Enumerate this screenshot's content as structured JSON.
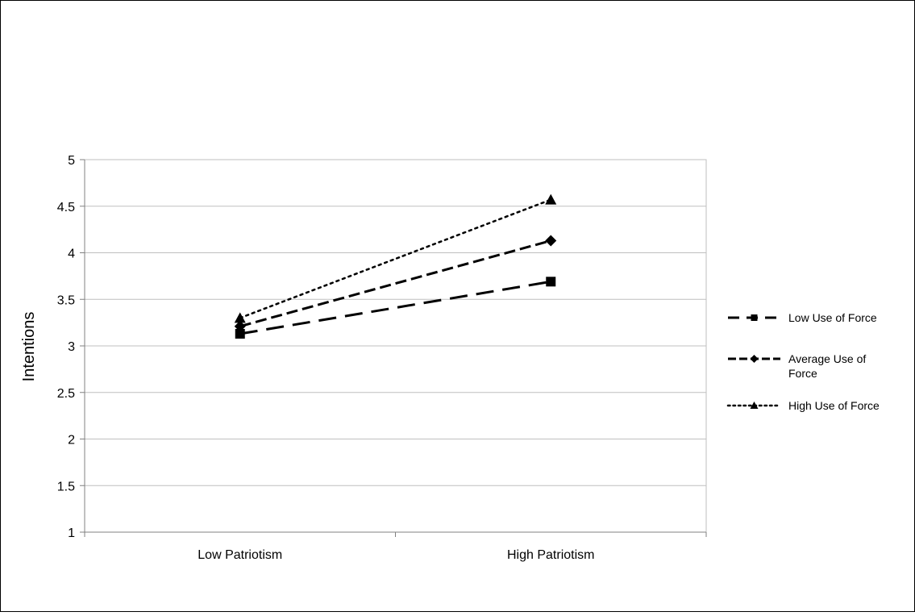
{
  "chart_data": {
    "type": "line",
    "title": "",
    "xlabel": "",
    "ylabel": "Intentions",
    "categories": [
      "Low Patriotism",
      "High Patriotism"
    ],
    "ylim": [
      1,
      5
    ],
    "yticks": [
      1,
      1.5,
      2,
      2.5,
      3,
      3.5,
      4,
      4.5,
      5
    ],
    "grid": true,
    "legend_position": "right",
    "series": [
      {
        "name": "Low Use of Force",
        "legend_lines": [
          "Low Use of Force"
        ],
        "values": [
          3.13,
          3.69
        ],
        "line_style": "long-dash",
        "marker": "square",
        "color": "#000000"
      },
      {
        "name": "Average Use of Force",
        "legend_lines": [
          "Average Use of",
          "Force"
        ],
        "values": [
          3.21,
          4.13
        ],
        "line_style": "dash",
        "marker": "diamond",
        "color": "#000000"
      },
      {
        "name": "High Use of Force",
        "legend_lines": [
          "High Use of Force"
        ],
        "values": [
          3.3,
          4.57
        ],
        "line_style": "dot",
        "marker": "triangle",
        "color": "#000000"
      }
    ]
  }
}
